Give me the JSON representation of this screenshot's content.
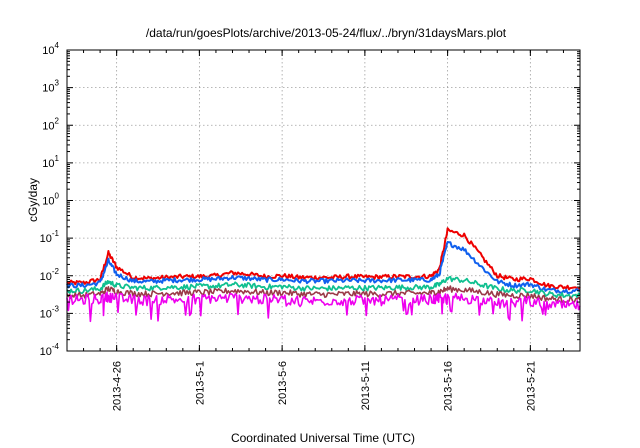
{
  "chart_data": {
    "type": "line",
    "title": "/data/run/goesPlots/archive/2013-05-24/flux/../bryn/31daysMars.plot",
    "xlabel": "Coordinated Universal Time (UTC)",
    "ylabel": "cGy/day",
    "yscale": "log",
    "ylim": [
      0.0001,
      10000
    ],
    "xlim": [
      "2013-04-23",
      "2013-05-24"
    ],
    "x_ticks": [
      "2013-4-26",
      "2013-5-1",
      "2013-5-6",
      "2013-5-11",
      "2013-5-16",
      "2013-5-21"
    ],
    "y_ticks": [
      {
        "base": "10",
        "exp": "-4"
      },
      {
        "base": "10",
        "exp": "-3"
      },
      {
        "base": "10",
        "exp": "-2"
      },
      {
        "base": "10",
        "exp": "-1"
      },
      {
        "base": "10",
        "exp": "0"
      },
      {
        "base": "10",
        "exp": "1"
      },
      {
        "base": "10",
        "exp": "2"
      },
      {
        "base": "10",
        "exp": "3"
      },
      {
        "base": "10",
        "exp": "4"
      }
    ],
    "grid": true,
    "x": [
      "2013-04-23",
      "2013-04-24",
      "2013-04-25",
      "2013-04-25T12:00",
      "2013-04-26",
      "2013-04-27",
      "2013-04-28",
      "2013-04-29",
      "2013-04-30",
      "2013-05-01",
      "2013-05-02",
      "2013-05-03",
      "2013-05-04",
      "2013-05-05",
      "2013-05-06",
      "2013-05-07",
      "2013-05-08",
      "2013-05-09",
      "2013-05-10",
      "2013-05-11",
      "2013-05-12",
      "2013-05-13",
      "2013-05-14",
      "2013-05-15",
      "2013-05-15T12:00",
      "2013-05-16",
      "2013-05-17",
      "2013-05-18",
      "2013-05-19",
      "2013-05-20",
      "2013-05-21",
      "2013-05-22",
      "2013-05-23",
      "2013-05-24"
    ],
    "series": [
      {
        "color": "#ee0000",
        "values": [
          0.0065,
          0.0065,
          0.008,
          0.04,
          0.017,
          0.009,
          0.0085,
          0.009,
          0.0095,
          0.0095,
          0.01,
          0.012,
          0.011,
          0.0095,
          0.01,
          0.009,
          0.009,
          0.009,
          0.0095,
          0.0092,
          0.0093,
          0.0095,
          0.0095,
          0.0098,
          0.015,
          0.16,
          0.12,
          0.035,
          0.01,
          0.008,
          0.0085,
          0.0055,
          0.005,
          0.005
        ]
      },
      {
        "color": "#1060ee",
        "values": [
          0.0055,
          0.0055,
          0.0065,
          0.025,
          0.011,
          0.0072,
          0.007,
          0.0075,
          0.0078,
          0.008,
          0.0082,
          0.009,
          0.0085,
          0.0078,
          0.008,
          0.0073,
          0.0072,
          0.0073,
          0.0075,
          0.0074,
          0.0075,
          0.0077,
          0.0077,
          0.0078,
          0.011,
          0.075,
          0.05,
          0.018,
          0.007,
          0.0055,
          0.006,
          0.0042,
          0.004,
          0.004
        ]
      },
      {
        "color": "#10c090",
        "values": [
          0.004,
          0.004,
          0.0045,
          0.007,
          0.0055,
          0.0048,
          0.0047,
          0.005,
          0.005,
          0.0052,
          0.0053,
          0.0058,
          0.0055,
          0.005,
          0.0052,
          0.0047,
          0.0046,
          0.0046,
          0.0048,
          0.0047,
          0.0048,
          0.0049,
          0.0049,
          0.005,
          0.0058,
          0.0085,
          0.0075,
          0.0058,
          0.0045,
          0.004,
          0.0042,
          0.0033,
          0.003,
          0.003
        ]
      },
      {
        "color": "#9a3a48",
        "values": [
          0.003,
          0.003,
          0.0033,
          0.0045,
          0.0038,
          0.0034,
          0.0033,
          0.0035,
          0.0035,
          0.0036,
          0.0037,
          0.004,
          0.0038,
          0.0035,
          0.0036,
          0.0033,
          0.0032,
          0.0032,
          0.0033,
          0.0033,
          0.0033,
          0.0034,
          0.0034,
          0.0035,
          0.0038,
          0.0045,
          0.0042,
          0.0037,
          0.0032,
          0.003,
          0.003,
          0.0025,
          0.0023,
          0.0023
        ]
      },
      {
        "color": "#ee00ee",
        "values": [
          0.0022,
          0.0023,
          0.0024,
          0.0028,
          0.0025,
          0.0023,
          0.0022,
          0.0024,
          0.0023,
          0.0025,
          0.0025,
          0.0026,
          0.0025,
          0.0023,
          0.0024,
          0.0022,
          0.0021,
          0.0022,
          0.0022,
          0.0022,
          0.0022,
          0.0023,
          0.0023,
          0.0023,
          0.0024,
          0.0026,
          0.0025,
          0.0023,
          0.0018,
          0.002,
          0.0021,
          0.0017,
          0.0016,
          0.0016
        ]
      }
    ]
  }
}
